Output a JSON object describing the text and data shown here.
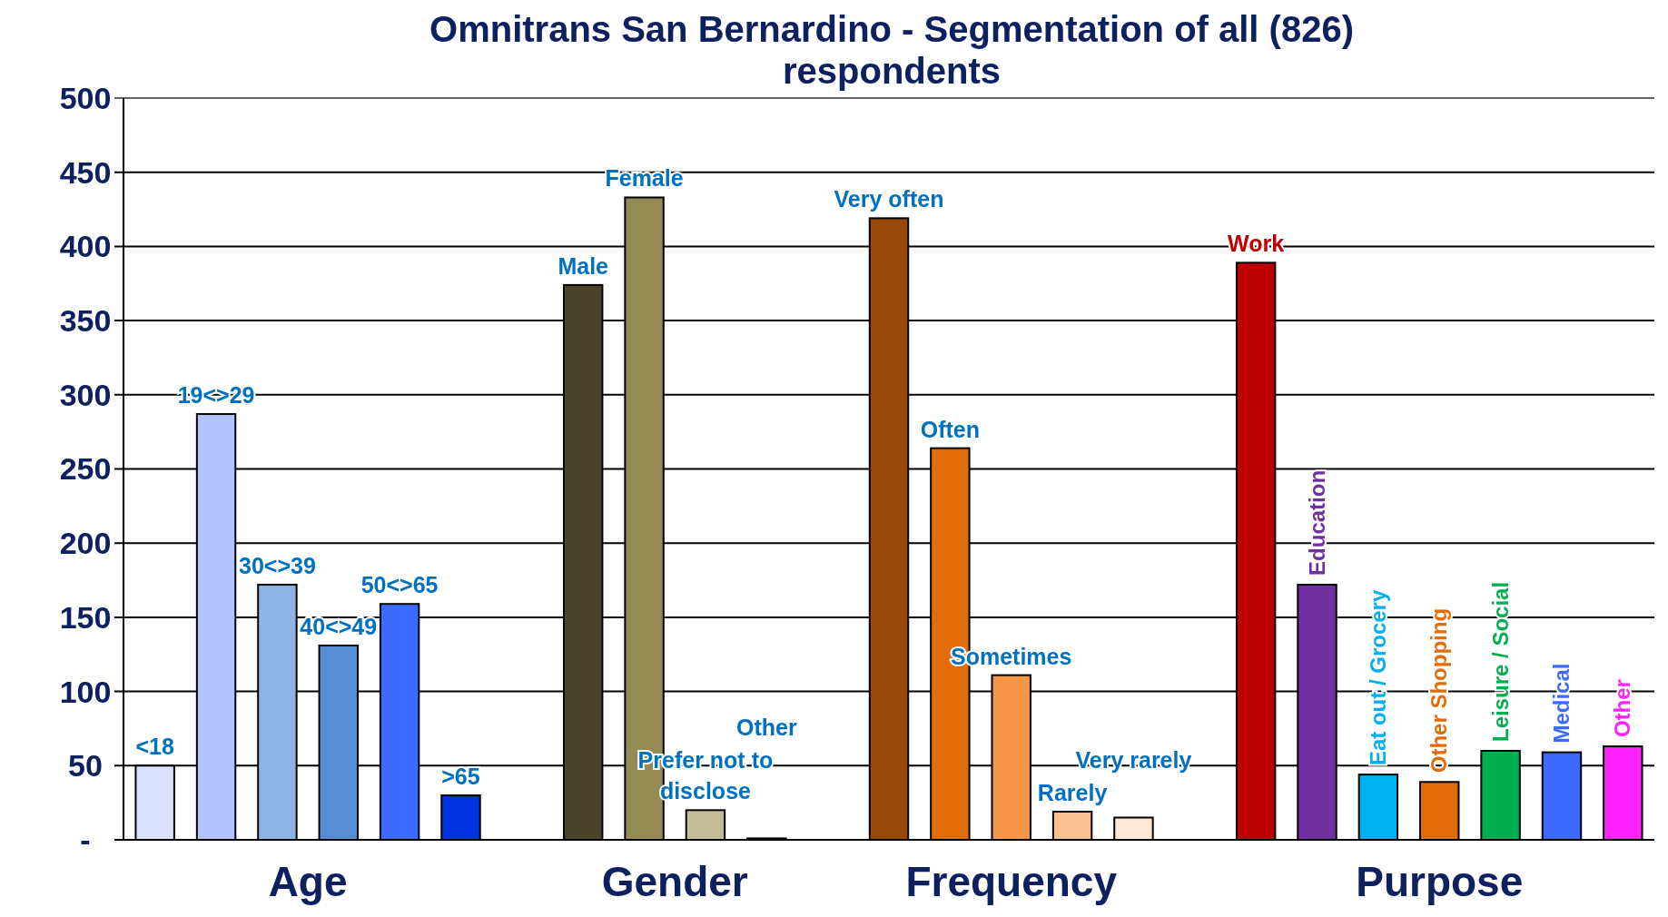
{
  "chart_data": {
    "type": "bar",
    "title": "Omnitrans San Bernardino - Segmentation of all (826) respondents",
    "categories": [
      "<18",
      "19<>29",
      "30<>39",
      "40<>49",
      "50<>65",
      ">65",
      null,
      "Male",
      "Female",
      "Prefer not to disclose",
      "Other",
      null,
      "Very often",
      "Often",
      "Sometimes",
      "Rarely",
      "Very rarely",
      null,
      "Work",
      "Education",
      "Eat out / Grocery",
      "Other Shopping",
      "Leisure / Social",
      "Medical",
      "Other"
    ],
    "values": [
      50,
      287,
      172,
      131,
      159,
      30,
      null,
      374,
      433,
      20,
      1,
      null,
      419,
      264,
      111,
      19,
      15,
      null,
      389,
      172,
      44,
      39,
      60,
      59,
      63
    ],
    "colors": [
      "#d9e1ff",
      "#b3c3ff",
      "#8eb4e3",
      "#558ed5",
      "#3d6bff",
      "#0033e0",
      null,
      "#4a452a",
      "#948a54",
      "#c4bd97",
      "#1a1a1a",
      null,
      "#984807",
      "#e36c0a",
      "#f79646",
      "#fac090",
      "#fde9d9",
      null,
      "#c00000",
      "#7030a0",
      "#00b0f0",
      "#e36c0a",
      "#00b050",
      "#3d6bff",
      "#ff22ff"
    ],
    "annotations": [
      "Age",
      "Gender",
      "Frequency",
      "Purpose"
    ],
    "ylim": [
      0,
      500
    ],
    "yticks": [
      {
        "value": 0,
        "label": "-"
      },
      50,
      100,
      150,
      200,
      250,
      300,
      350,
      400,
      450,
      500
    ],
    "grid": "y"
  }
}
